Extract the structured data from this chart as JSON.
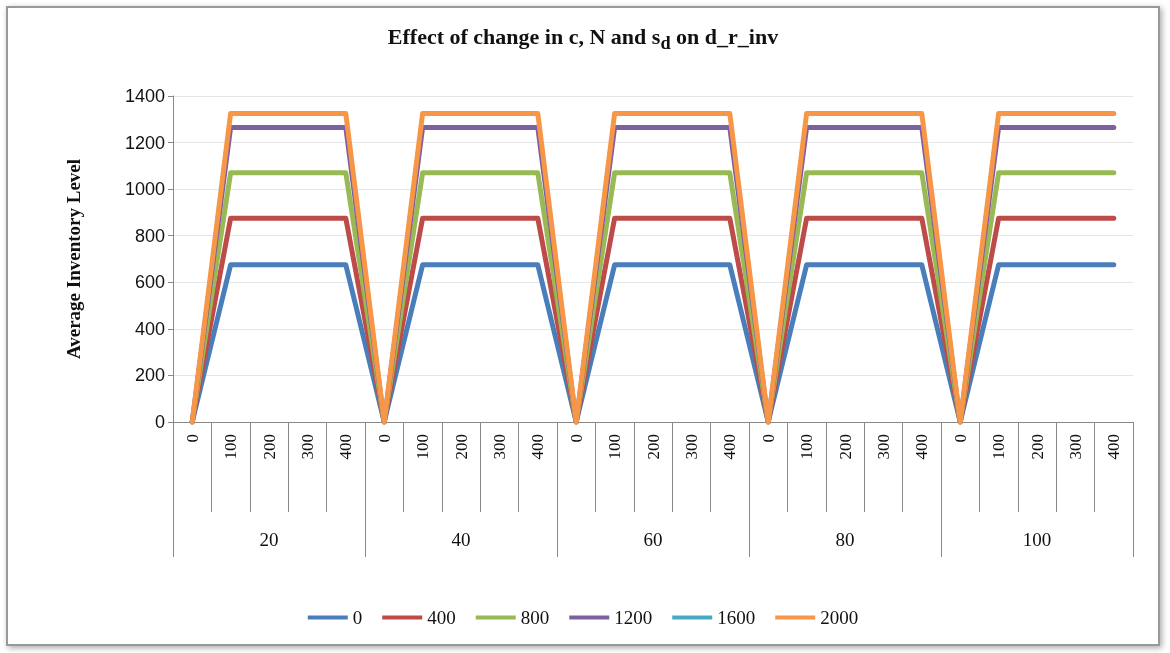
{
  "chart_data": {
    "type": "line",
    "title": "Effect of change in c, N and s$_{d}$ on d_r_inv",
    "ylabel": "Average Inventory Level",
    "categories": [
      "0",
      "100",
      "200",
      "300",
      "400",
      "0",
      "100",
      "200",
      "300",
      "400",
      "0",
      "100",
      "200",
      "300",
      "400",
      "0",
      "100",
      "200",
      "300",
      "400",
      "0",
      "100",
      "200",
      "300",
      "400"
    ],
    "annotations": [
      "20",
      "40",
      "60",
      "80",
      "100"
    ],
    "series": [
      {
        "name": "0",
        "color": "#4a7ebb",
        "values": [
          0,
          675,
          675,
          675,
          675,
          0,
          675,
          675,
          675,
          675,
          0,
          675,
          675,
          675,
          675,
          0,
          675,
          675,
          675,
          675,
          0,
          675,
          675,
          675,
          675
        ]
      },
      {
        "name": "400",
        "color": "#be4b48",
        "values": [
          0,
          875,
          875,
          875,
          875,
          0,
          875,
          875,
          875,
          875,
          0,
          875,
          875,
          875,
          875,
          0,
          875,
          875,
          875,
          875,
          0,
          875,
          875,
          875,
          875
        ]
      },
      {
        "name": "800",
        "color": "#98b954",
        "values": [
          0,
          1070,
          1070,
          1070,
          1070,
          0,
          1070,
          1070,
          1070,
          1070,
          0,
          1070,
          1070,
          1070,
          1070,
          0,
          1070,
          1070,
          1070,
          1070,
          0,
          1070,
          1070,
          1070,
          1070
        ]
      },
      {
        "name": "1200",
        "color": "#7d60a0",
        "values": [
          0,
          1265,
          1265,
          1265,
          1265,
          0,
          1265,
          1265,
          1265,
          1265,
          0,
          1265,
          1265,
          1265,
          1265,
          0,
          1265,
          1265,
          1265,
          1265,
          0,
          1265,
          1265,
          1265,
          1265
        ]
      },
      {
        "name": "1600",
        "color": "#46aac5",
        "values": [
          null,
          null,
          null,
          null,
          null,
          null,
          null,
          null,
          null,
          null,
          null,
          null,
          null,
          null,
          null,
          null,
          null,
          null,
          null,
          null,
          null,
          null,
          null,
          null,
          null
        ]
      },
      {
        "name": "2000",
        "color": "#f79646",
        "values": [
          0,
          1325,
          1325,
          1325,
          1325,
          0,
          1325,
          1325,
          1325,
          1325,
          0,
          1325,
          1325,
          1325,
          1325,
          0,
          1325,
          1325,
          1325,
          1325,
          0,
          1325,
          1325,
          1325,
          1325
        ]
      }
    ],
    "ylim": [
      0,
      1400
    ],
    "yticks": [
      0,
      200,
      400,
      600,
      800,
      1000,
      1200,
      1400
    ],
    "grid": "y",
    "legend": "bottom",
    "marker": "none",
    "line_style": "solid"
  }
}
